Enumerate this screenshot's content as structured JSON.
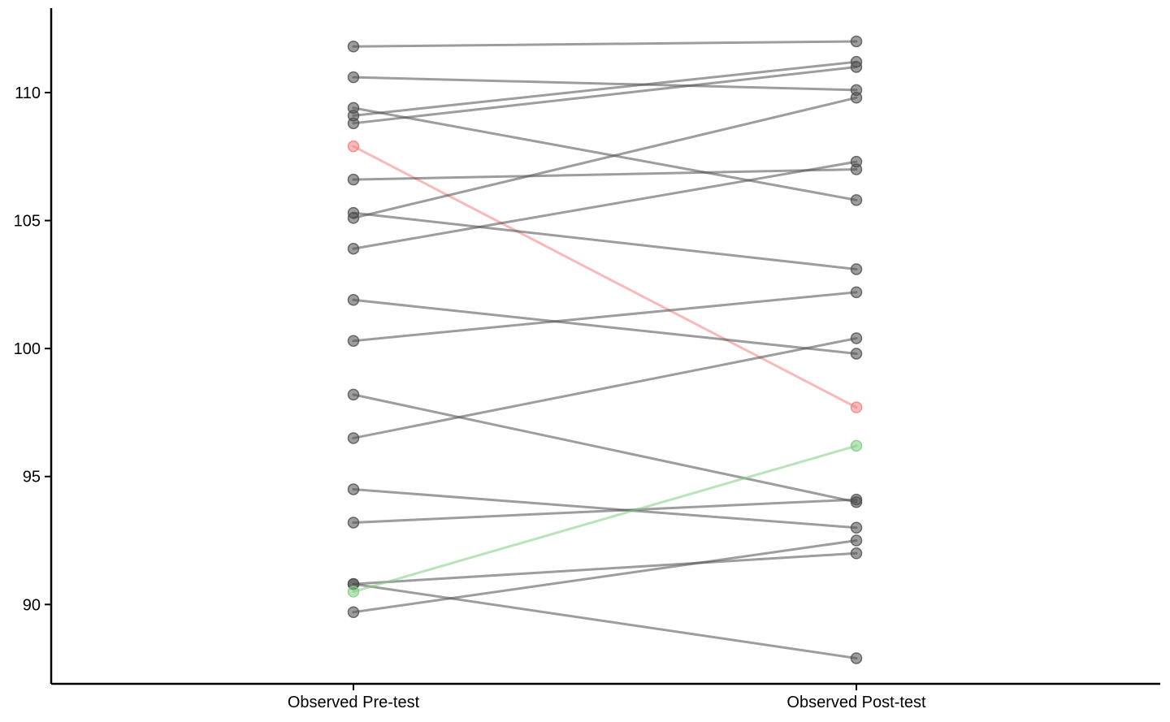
{
  "chart_data": {
    "type": "line",
    "title": "",
    "xlabel": "",
    "ylabel": "",
    "categories": [
      "Observed Pre-test",
      "Observed Post-test"
    ],
    "yticks": [
      90,
      95,
      100,
      105,
      110
    ],
    "ylim": [
      86.9,
      113.3
    ],
    "grid": false,
    "legend": "none",
    "colors": {
      "default": "#4d4d4d",
      "decrease_highlight": "#f08080",
      "increase_highlight": "#7fcc7f",
      "axis": "#000000"
    },
    "pairs": [
      {
        "pre": 111.8,
        "post": 112.0,
        "highlight": "default"
      },
      {
        "pre": 110.6,
        "post": 110.1,
        "highlight": "default"
      },
      {
        "pre": 109.4,
        "post": 105.8,
        "highlight": "default"
      },
      {
        "pre": 109.1,
        "post": 111.2,
        "highlight": "default"
      },
      {
        "pre": 108.8,
        "post": 111.0,
        "highlight": "default"
      },
      {
        "pre": 107.9,
        "post": 97.7,
        "highlight": "decrease_highlight"
      },
      {
        "pre": 106.6,
        "post": 107.0,
        "highlight": "default"
      },
      {
        "pre": 105.3,
        "post": 103.1,
        "highlight": "default"
      },
      {
        "pre": 105.1,
        "post": 109.8,
        "highlight": "default"
      },
      {
        "pre": 103.9,
        "post": 107.3,
        "highlight": "default"
      },
      {
        "pre": 101.9,
        "post": 99.8,
        "highlight": "default"
      },
      {
        "pre": 100.3,
        "post": 102.2,
        "highlight": "default"
      },
      {
        "pre": 98.2,
        "post": 94.0,
        "highlight": "default"
      },
      {
        "pre": 96.5,
        "post": 100.4,
        "highlight": "default"
      },
      {
        "pre": 94.5,
        "post": 93.0,
        "highlight": "default"
      },
      {
        "pre": 93.2,
        "post": 94.1,
        "highlight": "default"
      },
      {
        "pre": 90.8,
        "post": 92.0,
        "highlight": "default"
      },
      {
        "pre": 90.8,
        "post": 87.9,
        "highlight": "default"
      },
      {
        "pre": 90.5,
        "post": 96.2,
        "highlight": "increase_highlight"
      },
      {
        "pre": 89.7,
        "post": 92.5,
        "highlight": "default"
      }
    ]
  }
}
